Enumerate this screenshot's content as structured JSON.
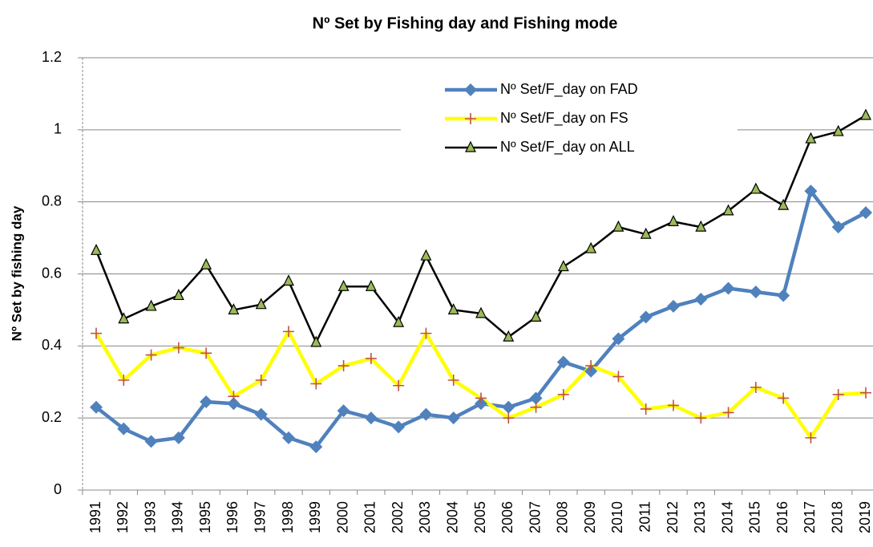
{
  "chart_data": {
    "type": "line",
    "title": "Nº Set by Fishing day and Fishing mode",
    "y_label": "Nº Set by fishing day",
    "categories": [
      "1991",
      "1992",
      "1993",
      "1994",
      "1995",
      "1996",
      "1997",
      "1998",
      "1999",
      "2000",
      "2001",
      "2002",
      "2003",
      "2004",
      "2005",
      "2006",
      "2007",
      "2008",
      "2009",
      "2010",
      "2011",
      "2012",
      "2013",
      "2014",
      "2015",
      "2016",
      "2017",
      "2018",
      "2019"
    ],
    "series": [
      {
        "name": "Nº Set/F_day on FAD",
        "color": "#4f81bd",
        "marker": "diamond",
        "marker_color": "#4f81bd",
        "values": [
          0.23,
          0.17,
          0.135,
          0.145,
          0.245,
          0.24,
          0.21,
          0.145,
          0.12,
          0.22,
          0.2,
          0.175,
          0.21,
          0.2,
          0.24,
          0.23,
          0.255,
          0.355,
          0.33,
          0.42,
          0.48,
          0.51,
          0.53,
          0.56,
          0.55,
          0.54,
          0.83,
          0.73,
          0.77
        ]
      },
      {
        "name": "Nº Set/F_day on FS",
        "color": "#ffff00",
        "marker": "plus",
        "marker_color": "#c0504d",
        "values": [
          0.435,
          0.305,
          0.375,
          0.395,
          0.38,
          0.26,
          0.305,
          0.44,
          0.295,
          0.345,
          0.365,
          0.29,
          0.435,
          0.305,
          0.255,
          0.2,
          0.23,
          0.265,
          0.345,
          0.315,
          0.225,
          0.235,
          0.2,
          0.215,
          0.285,
          0.255,
          0.145,
          0.265,
          0.27
        ]
      },
      {
        "name": "Nº Set/F_day on ALL",
        "color": "#000000",
        "marker": "triangle",
        "marker_color": "#9bbb59",
        "values": [
          0.665,
          0.475,
          0.51,
          0.54,
          0.625,
          0.5,
          0.515,
          0.58,
          0.41,
          0.565,
          0.565,
          0.465,
          0.65,
          0.5,
          0.49,
          0.425,
          0.48,
          0.62,
          0.67,
          0.73,
          0.71,
          0.745,
          0.73,
          0.775,
          0.835,
          0.79,
          0.975,
          0.995,
          1.04
        ]
      }
    ],
    "ylim": [
      0,
      1.2
    ],
    "yticks": [
      0,
      0.2,
      0.4,
      0.6,
      0.8,
      1,
      1.2
    ],
    "grid": true
  }
}
